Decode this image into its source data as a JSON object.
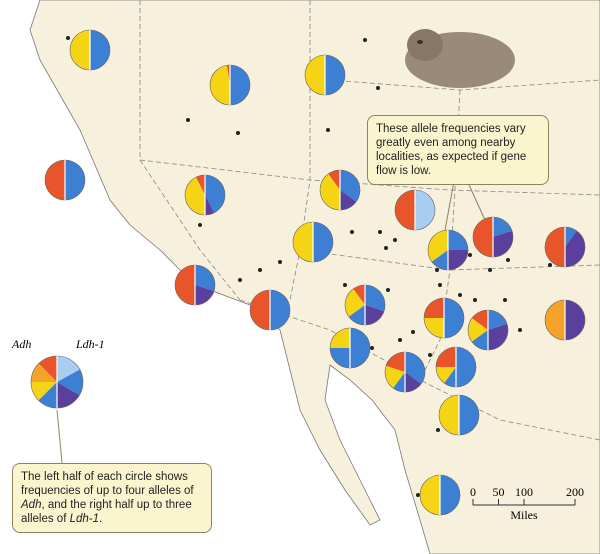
{
  "callout_top": "These allele frequencies vary greatly even among nearby localities, as expected if gene flow is low.",
  "callout_bottom": [
    "The left half of each circle shows frequencies of up to four alleles of ",
    "Adh",
    ", and the right half up to three alleles of ",
    "Ldh-1",
    "."
  ],
  "legend": {
    "adh_label": "Adh",
    "ldh_label": "Ldh-1",
    "adh_colors": [
      "#e8552a",
      "#f3a32a",
      "#f5d416",
      "#3d7fd3"
    ],
    "ldh_colors": [
      "#a8cdf0",
      "#3d7fd3",
      "#5b3f9c"
    ],
    "example": {
      "adh": [
        25,
        25,
        25,
        25
      ],
      "ldh": [
        34,
        33,
        33
      ]
    }
  },
  "pies": [
    {
      "adh": [
        0,
        0,
        100,
        0
      ],
      "ldh": [
        0,
        100,
        0
      ]
    },
    {
      "adh": [
        5,
        0,
        95,
        0
      ],
      "ldh": [
        0,
        100,
        0
      ]
    },
    {
      "adh": [
        0,
        0,
        100,
        0
      ],
      "ldh": [
        0,
        100,
        0
      ]
    },
    {
      "adh": [
        100,
        0,
        0,
        0
      ],
      "ldh": [
        0,
        100,
        0
      ]
    },
    {
      "adh": [
        15,
        0,
        85,
        0
      ],
      "ldh": [
        0,
        85,
        15
      ]
    },
    {
      "adh": [
        20,
        0,
        80,
        0
      ],
      "ldh": [
        0,
        70,
        30
      ]
    },
    {
      "adh": [
        0,
        0,
        100,
        0
      ],
      "ldh": [
        0,
        100,
        0
      ]
    },
    {
      "adh": [
        100,
        0,
        0,
        0
      ],
      "ldh": [
        100,
        0,
        0
      ]
    },
    {
      "adh": [
        0,
        0,
        70,
        30
      ],
      "ldh": [
        0,
        50,
        50
      ]
    },
    {
      "adh": [
        100,
        0,
        0,
        0
      ],
      "ldh": [
        0,
        40,
        60
      ]
    },
    {
      "adh": [
        100,
        0,
        0,
        0
      ],
      "ldh": [
        0,
        20,
        80
      ]
    },
    {
      "adh": [
        100,
        0,
        0,
        0
      ],
      "ldh": [
        0,
        60,
        40
      ]
    },
    {
      "adh": [
        100,
        0,
        0,
        0
      ],
      "ldh": [
        0,
        100,
        0
      ]
    },
    {
      "adh": [
        20,
        0,
        50,
        30
      ],
      "ldh": [
        0,
        60,
        40
      ]
    },
    {
      "adh": [
        50,
        0,
        50,
        0
      ],
      "ldh": [
        0,
        100,
        0
      ]
    },
    {
      "adh": [
        30,
        0,
        40,
        30
      ],
      "ldh": [
        0,
        40,
        60
      ]
    },
    {
      "adh": [
        0,
        100,
        0,
        0
      ],
      "ldh": [
        0,
        0,
        100
      ]
    },
    {
      "adh": [
        0,
        0,
        50,
        50
      ],
      "ldh": [
        0,
        100,
        0
      ]
    },
    {
      "adh": [
        40,
        0,
        40,
        20
      ],
      "ldh": [
        0,
        70,
        30
      ]
    },
    {
      "adh": [
        50,
        0,
        30,
        20
      ],
      "ldh": [
        0,
        100,
        0
      ]
    },
    {
      "adh": [
        0,
        0,
        100,
        0
      ],
      "ldh": [
        0,
        100,
        0
      ]
    },
    {
      "adh": [
        0,
        0,
        100,
        0
      ],
      "ldh": [
        0,
        100,
        0
      ]
    }
  ],
  "scale": {
    "ticks": [
      0,
      50,
      100,
      200
    ],
    "range": [
      0,
      200
    ],
    "unit": "Miles"
  }
}
